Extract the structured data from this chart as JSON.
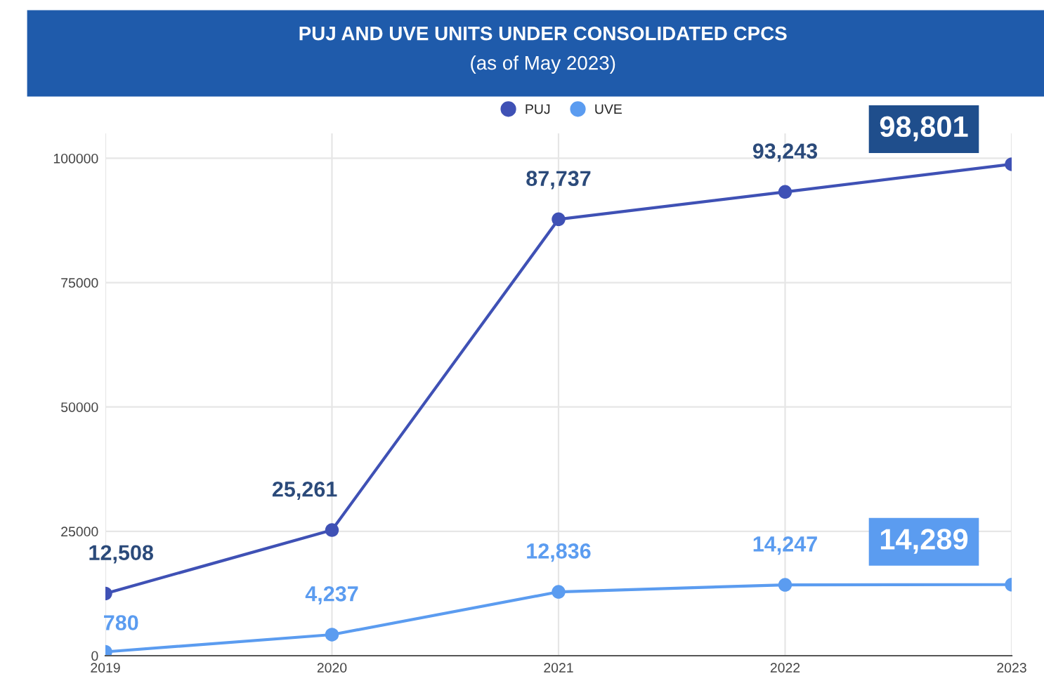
{
  "chart_data": {
    "type": "line",
    "title": "PUJ AND UVE UNITS UNDER CONSOLIDATED CPCS",
    "subtitle": "(as of May 2023)",
    "x": [
      2019,
      2020,
      2021,
      2022,
      2023
    ],
    "series": [
      {
        "name": "PUJ",
        "color": "#3f51b5",
        "values": [
          12508,
          25261,
          87737,
          93243,
          98801
        ],
        "value_labels": [
          "12,508",
          "25,261",
          "87,737",
          "93,243",
          "98,801"
        ]
      },
      {
        "name": "UVE",
        "color": "#5b9cf0",
        "values": [
          780,
          4237,
          12836,
          14247,
          14289
        ],
        "value_labels": [
          "780",
          "4,237",
          "12,836",
          "14,247",
          "14,289"
        ]
      }
    ],
    "xlim": [
      2019,
      2023
    ],
    "xticks": [
      2019,
      2020,
      2021,
      2022,
      2023
    ],
    "ylim": [
      0,
      105000
    ],
    "yticks": [
      0,
      25000,
      50000,
      75000,
      100000
    ],
    "grid": true,
    "legend": "top",
    "marker": "circle",
    "line_style": "solid"
  }
}
